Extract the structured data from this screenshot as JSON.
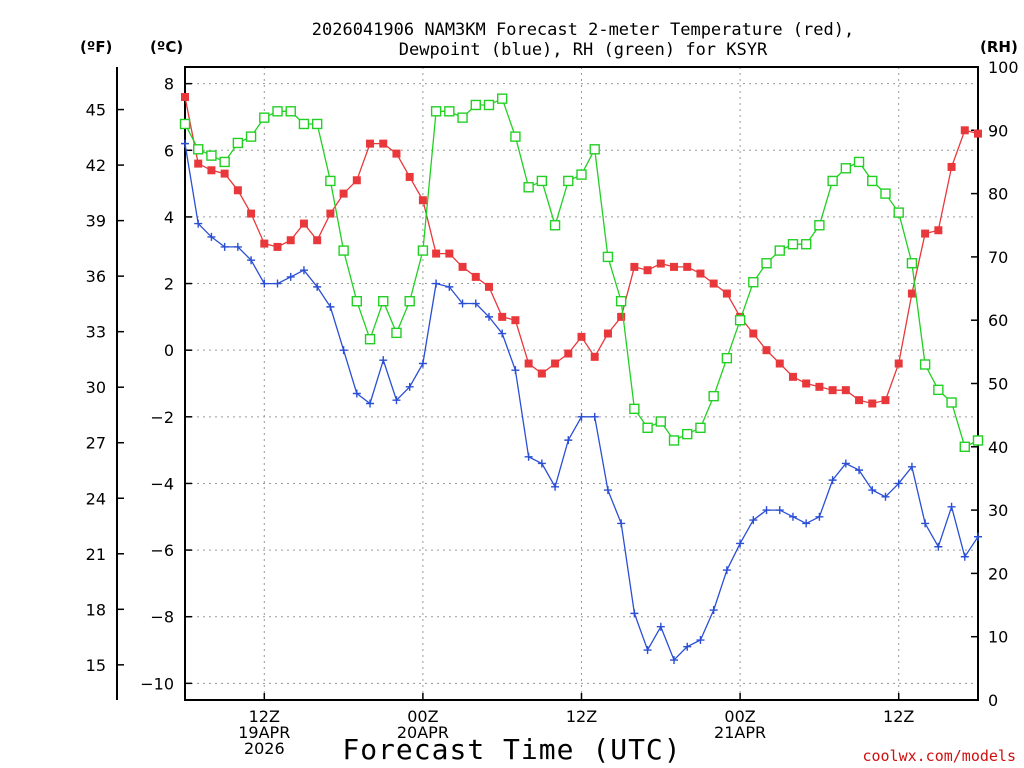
{
  "chart_data": {
    "type": "line",
    "title_lines": [
      "2026041906 NAM3KM Forecast 2-meter Temperature (red),",
      "Dewpoint (blue), RH (green) for KSYR"
    ],
    "xlabel": "Forecast Time (UTC)",
    "credit": "coolwx.com/models",
    "units": {
      "f": "(ºF)",
      "c": "(ºC)",
      "rh": "(RH)"
    },
    "x_range_hours": [
      0,
      60
    ],
    "x_ticks": [
      {
        "hour": 6,
        "lines": [
          "12Z",
          "19APR",
          "2026"
        ]
      },
      {
        "hour": 18,
        "lines": [
          "00Z",
          "20APR"
        ]
      },
      {
        "hour": 30,
        "lines": [
          "12Z"
        ]
      },
      {
        "hour": 42,
        "lines": [
          "00Z",
          "21APR"
        ]
      },
      {
        "hour": 54,
        "lines": [
          "12Z"
        ]
      }
    ],
    "c_axis": {
      "min": -10.5,
      "max": 8.5,
      "ticks": [
        -10,
        -8,
        -6,
        -4,
        -2,
        0,
        2,
        4,
        6,
        8
      ],
      "tick_labels": [
        "−10",
        "−8",
        "−6",
        "−4",
        "−2",
        "0",
        "2",
        "4",
        "6",
        "8"
      ]
    },
    "f_axis": {
      "ticks": [
        15,
        18,
        21,
        24,
        27,
        30,
        33,
        36,
        39,
        42,
        45
      ]
    },
    "rh_axis": {
      "min": 0,
      "max": 100,
      "ticks": [
        0,
        10,
        20,
        30,
        40,
        50,
        60,
        70,
        80,
        90,
        100
      ]
    },
    "series": [
      {
        "name": "2-meter Temperature",
        "color": "#e8383b",
        "marker": "filled-square",
        "axis": "c",
        "hours": [
          0,
          1,
          2,
          3,
          4,
          5,
          6,
          7,
          8,
          9,
          10,
          11,
          12,
          13,
          14,
          15,
          16,
          17,
          18,
          19,
          20,
          21,
          22,
          23,
          24,
          25,
          26,
          27,
          28,
          29,
          30,
          31,
          32,
          33,
          34,
          35,
          36,
          37,
          38,
          39,
          40,
          41,
          42,
          43,
          44,
          45,
          46,
          47,
          48,
          49,
          50,
          51,
          52,
          53,
          54,
          55,
          56,
          57,
          58,
          59,
          60
        ],
        "values": [
          7.6,
          5.6,
          5.4,
          5.3,
          4.8,
          4.1,
          3.2,
          3.1,
          3.3,
          3.8,
          3.3,
          4.1,
          4.7,
          5.1,
          6.2,
          6.2,
          5.9,
          5.2,
          4.5,
          2.9,
          2.9,
          2.5,
          2.2,
          1.9,
          1.0,
          0.9,
          -0.4,
          -0.7,
          -0.4,
          -0.1,
          0.4,
          -0.2,
          0.5,
          1.0,
          2.5,
          2.4,
          2.6,
          2.5,
          2.5,
          2.3,
          2.0,
          1.7,
          1.0,
          0.5,
          0.0,
          -0.4,
          -0.8,
          -1.0,
          -1.1,
          -1.2,
          -1.2,
          -1.5,
          -1.6,
          -1.5,
          -0.4,
          1.7,
          3.5,
          3.6,
          5.5,
          6.6,
          6.5
        ]
      },
      {
        "name": "Dewpoint",
        "color": "#2a4fd4",
        "marker": "plus",
        "axis": "c",
        "hours": [
          0,
          1,
          2,
          3,
          4,
          5,
          6,
          7,
          8,
          9,
          10,
          11,
          12,
          13,
          14,
          15,
          16,
          17,
          18,
          19,
          20,
          21,
          22,
          23,
          24,
          25,
          26,
          27,
          28,
          29,
          30,
          31,
          32,
          33,
          34,
          35,
          36,
          37,
          38,
          39,
          40,
          41,
          42,
          43,
          44,
          45,
          46,
          47,
          48,
          49,
          50,
          51,
          52,
          53,
          54,
          55,
          56,
          57,
          58,
          59,
          60
        ],
        "values": [
          6.2,
          3.8,
          3.4,
          3.1,
          3.1,
          2.7,
          2.0,
          2.0,
          2.2,
          2.4,
          1.9,
          1.3,
          0.0,
          -1.3,
          -1.6,
          -0.3,
          -1.5,
          -1.1,
          -0.4,
          2.0,
          1.9,
          1.4,
          1.4,
          1.0,
          0.5,
          -0.6,
          -3.2,
          -3.4,
          -4.1,
          -2.7,
          -2.0,
          -2.0,
          -4.2,
          -5.2,
          -7.9,
          -9.0,
          -8.3,
          -9.3,
          -8.9,
          -8.7,
          -7.8,
          -6.6,
          -5.8,
          -5.1,
          -4.8,
          -4.8,
          -5.0,
          -5.2,
          -5.0,
          -3.9,
          -3.4,
          -3.6,
          -4.2,
          -4.4,
          -4.0,
          -3.5,
          -5.2,
          -5.9,
          -4.7,
          -6.2,
          -5.6
        ]
      },
      {
        "name": "RH",
        "color": "#22d023",
        "marker": "open-square",
        "axis": "rh",
        "hours": [
          0,
          1,
          2,
          3,
          4,
          5,
          6,
          7,
          8,
          9,
          10,
          11,
          12,
          13,
          14,
          15,
          16,
          17,
          18,
          19,
          20,
          21,
          22,
          23,
          24,
          25,
          26,
          27,
          28,
          29,
          30,
          31,
          32,
          33,
          34,
          35,
          36,
          37,
          38,
          39,
          40,
          41,
          42,
          43,
          44,
          45,
          46,
          47,
          48,
          49,
          50,
          51,
          52,
          53,
          54,
          55,
          56,
          57,
          58,
          59,
          60
        ],
        "values": [
          91,
          87,
          86,
          85,
          88,
          89,
          92,
          93,
          93,
          91,
          91,
          82,
          71,
          63,
          57,
          63,
          58,
          63,
          71,
          93,
          93,
          92,
          94,
          94,
          95,
          89,
          81,
          82,
          75,
          82,
          83,
          87,
          70,
          63,
          46,
          43,
          44,
          41,
          42,
          43,
          48,
          54,
          60,
          66,
          69,
          71,
          72,
          72,
          75,
          82,
          84,
          85,
          82,
          80,
          77,
          69,
          53,
          49,
          47,
          40,
          41
        ]
      }
    ]
  }
}
